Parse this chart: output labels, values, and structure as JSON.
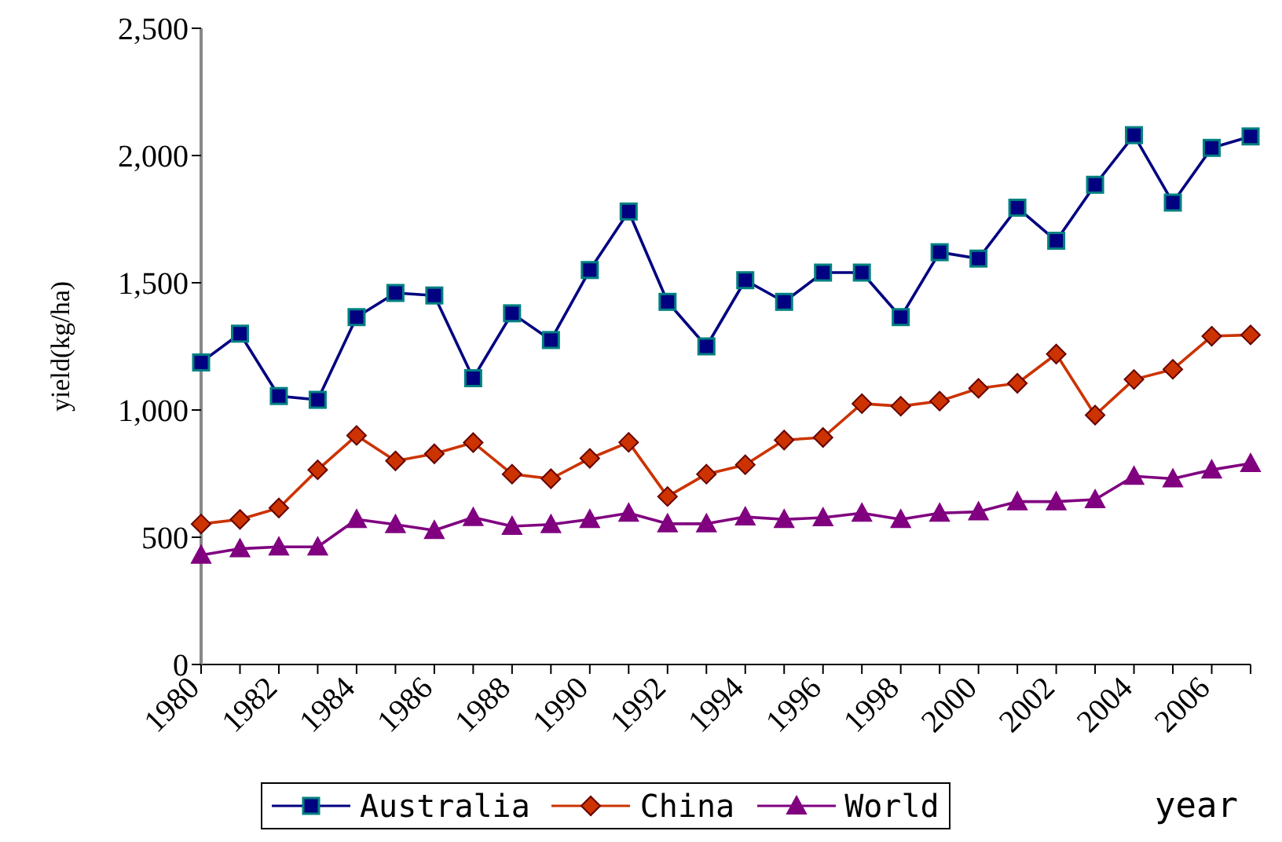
{
  "chart_data": {
    "type": "line",
    "xlabel": "year",
    "ylabel": "yield(kg/ha)",
    "categories": [
      "1980",
      null,
      "1982",
      null,
      "1984",
      null,
      "1986",
      null,
      "1988",
      null,
      "1990",
      null,
      "1992",
      null,
      "1994",
      null,
      "1996",
      null,
      "1998",
      null,
      "2000",
      null,
      "2002",
      null,
      "2004",
      null,
      "2006",
      null
    ],
    "series": [
      {
        "name": "Australia",
        "color": "#000080",
        "marker": "square",
        "values": [
          1187,
          1300,
          1055,
          1040,
          1365,
          1460,
          1450,
          1125,
          1380,
          1275,
          1550,
          1780,
          1425,
          1250,
          1510,
          1425,
          1540,
          1540,
          1365,
          1620,
          1595,
          1795,
          1665,
          1885,
          2080,
          1815,
          2030,
          2075
        ]
      },
      {
        "name": "China",
        "color": "#cc3300",
        "marker": "diamond",
        "values": [
          552,
          570,
          615,
          765,
          900,
          800,
          828,
          872,
          748,
          730,
          810,
          873,
          660,
          748,
          785,
          882,
          892,
          1025,
          1015,
          1035,
          1085,
          1105,
          1220,
          980,
          1120,
          1160,
          1290,
          1295
        ]
      },
      {
        "name": "World",
        "color": "#800080",
        "marker": "triangle",
        "values": [
          430,
          455,
          462,
          462,
          570,
          550,
          527,
          578,
          543,
          550,
          570,
          595,
          553,
          553,
          580,
          570,
          577,
          595,
          570,
          595,
          600,
          640,
          640,
          648,
          740,
          730,
          765,
          790
        ]
      }
    ],
    "ylim": [
      0,
      2500
    ],
    "yticks": [
      0,
      500,
      {
        "value": 1000,
        "label": "1,000"
      },
      {
        "value": 1500,
        "label": "1,500"
      },
      {
        "value": 2000,
        "label": "2,000"
      },
      {
        "value": 2500,
        "label": "2,500"
      }
    ],
    "grid": false,
    "legend": "bottom",
    "line_style": "solid"
  }
}
